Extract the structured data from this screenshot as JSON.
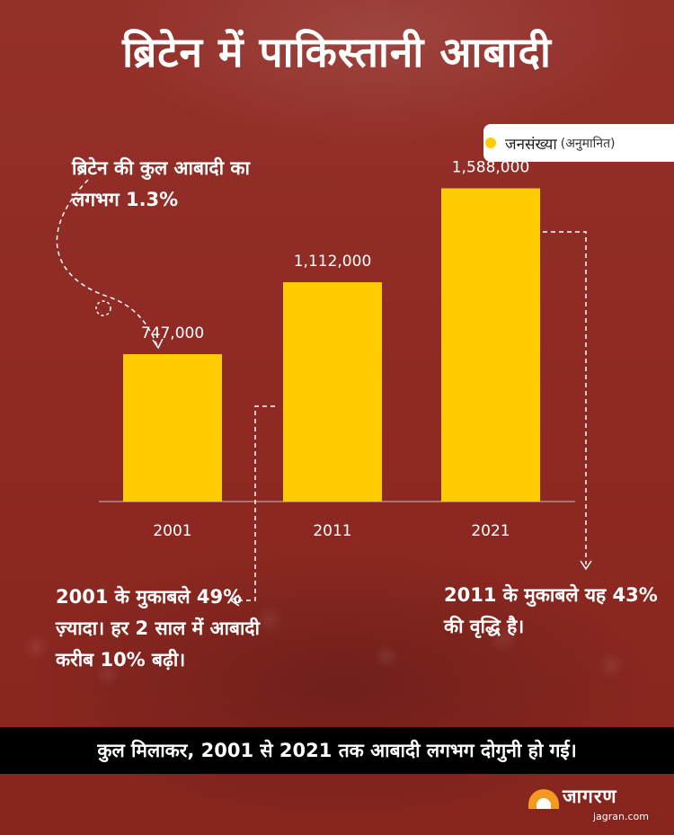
{
  "title": "ब्रिटेन में पाकिस्तानी आबादी",
  "legend": {
    "label": "जनसंख्या",
    "sub": "(अनुमानित)",
    "color": "#ffcc00"
  },
  "notes": {
    "n2001": "ब्रिटेन की कुल आबादी का लगभग 1.3%",
    "n2011": "2001 के मुकाबले 49% ज़्यादा। हर 2 साल में आबादी करीब 10% बढ़ी।",
    "n2021": "2011 के मुकाबले यह 43% की वृद्धि है।"
  },
  "footer": "कुल मिलाकर, 2001 से 2021 तक आबादी लगभग दोगुनी हो गई।",
  "brand": {
    "name": "जागरण",
    "url": "jagran.com"
  },
  "colors": {
    "background": "#8f2a22",
    "bar": "#ffcc00",
    "text": "#ffffff"
  },
  "chart_data": {
    "type": "bar",
    "categories": [
      "2001",
      "2011",
      "2021"
    ],
    "values": [
      747000,
      1112000,
      1588000
    ],
    "value_labels": [
      "747,000",
      "1,112,000",
      "1,588,000"
    ],
    "title": "",
    "xlabel": "",
    "ylabel": "",
    "ylim": [
      0,
      1800000
    ],
    "grid": false,
    "legend_position": "top-right"
  }
}
